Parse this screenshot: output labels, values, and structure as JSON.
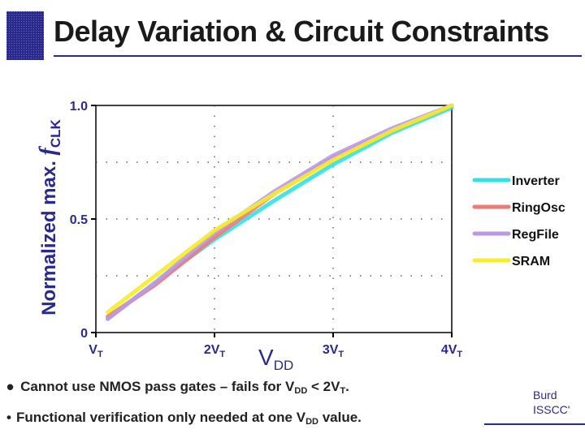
{
  "slide": {
    "title": "Delay Variation & Circuit Constraints",
    "accent_color": "#2a2a8c",
    "credit_line1": "Burd",
    "credit_line2": "ISSCC'",
    "bullets": [
      {
        "parts": [
          "Cannot use NMOS pass gates – fails for V",
          "DD",
          " < 2V",
          "T",
          "."
        ]
      },
      {
        "parts": [
          "Functional verification only needed at one V",
          "DD",
          " value."
        ]
      }
    ]
  },
  "chart_data": {
    "type": "line",
    "title": "",
    "ylabel_main": "Normalized max. ",
    "ylabel_f": "f",
    "ylabel_sub": "CLK",
    "xlabel_main": "V",
    "xlabel_sub": "DD",
    "x_ticks": [
      {
        "value": 1,
        "main": "V",
        "sub": "T"
      },
      {
        "value": 2,
        "main": "2V",
        "sub": "T"
      },
      {
        "value": 3,
        "main": "3V",
        "sub": "T"
      },
      {
        "value": 4,
        "main": "4V",
        "sub": "T"
      }
    ],
    "y_ticks": [
      {
        "value": 0,
        "label": "0"
      },
      {
        "value": 0.5,
        "label": "0.5"
      },
      {
        "value": 1.0,
        "label": "1.0"
      }
    ],
    "xlim": [
      1,
      4
    ],
    "ylim": [
      0,
      1
    ],
    "legend_position": "right",
    "series": [
      {
        "name": "Inverter",
        "color": "#33e0e6",
        "x": [
          1.1,
          1.5,
          2.0,
          2.5,
          3.0,
          3.5,
          4.0
        ],
        "y": [
          0.06,
          0.22,
          0.41,
          0.58,
          0.74,
          0.88,
          0.99
        ]
      },
      {
        "name": "RingOsc",
        "color": "#f07878",
        "x": [
          1.1,
          1.5,
          2.0,
          2.5,
          3.0,
          3.5,
          4.0
        ],
        "y": [
          0.07,
          0.21,
          0.42,
          0.61,
          0.77,
          0.89,
          1.0
        ]
      },
      {
        "name": "RegFile",
        "color": "#bb99e6",
        "x": [
          1.1,
          1.5,
          2.0,
          2.5,
          3.0,
          3.5,
          4.0
        ],
        "y": [
          0.06,
          0.22,
          0.44,
          0.62,
          0.78,
          0.9,
          1.0
        ]
      },
      {
        "name": "SRAM",
        "color": "#f5ee28",
        "x": [
          1.1,
          1.5,
          2.0,
          2.5,
          3.0,
          3.5,
          4.0
        ],
        "y": [
          0.09,
          0.25,
          0.45,
          0.61,
          0.76,
          0.89,
          1.0
        ]
      }
    ]
  }
}
